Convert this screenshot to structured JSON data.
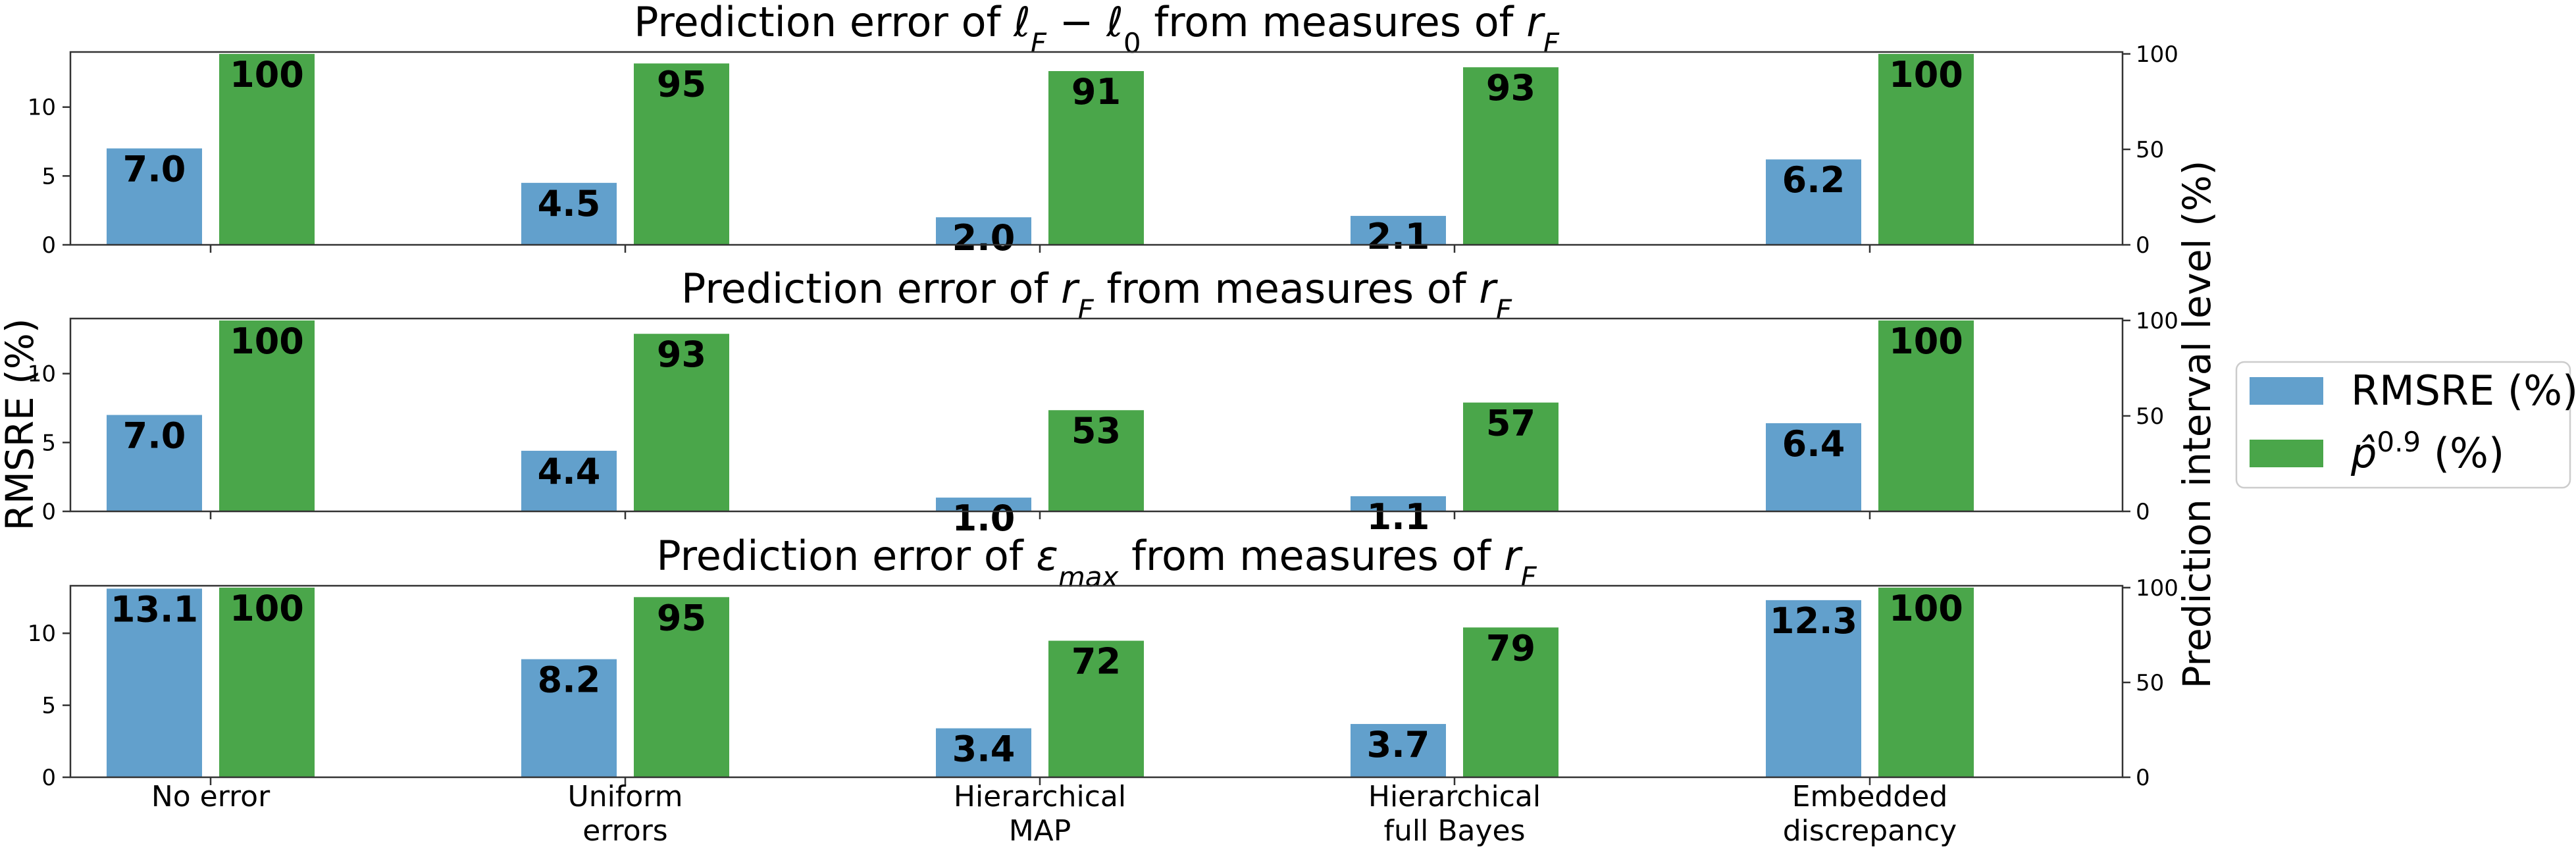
{
  "chart_data": {
    "type": "bar",
    "categories": [
      [
        "No error"
      ],
      [
        "Uniform",
        "errors"
      ],
      [
        "Hierarchical",
        "MAP"
      ],
      [
        "Hierarchical",
        "full Bayes"
      ],
      [
        "Embedded",
        "discrepancy"
      ]
    ],
    "ylabel": "RMSRE (%)",
    "y2label": "Prediction interval level (%)",
    "legend": {
      "placement": "right",
      "entries": [
        {
          "label": "RMSRE (%)",
          "color": "#62A0CC"
        },
        {
          "label": "p̂",
          "label_sup": "0.9",
          "label_suffix": " (%)",
          "color": "#4AA64A"
        }
      ]
    },
    "panels": [
      {
        "title_parts": [
          {
            "t": "Prediction error of "
          },
          {
            "t": "ℓ",
            "i": true
          },
          {
            "t": "F",
            "i": true,
            "sub": true
          },
          {
            "t": " − "
          },
          {
            "t": "ℓ",
            "i": true
          },
          {
            "t": "0",
            "sub": true
          },
          {
            "t": " from measures of "
          },
          {
            "t": "r",
            "i": true
          },
          {
            "t": "F",
            "i": true,
            "sub": true
          }
        ],
        "ylim": [
          0,
          14
        ],
        "y2lim": [
          0,
          101
        ],
        "yticks": [
          0,
          5,
          10
        ],
        "y2ticks": [
          0,
          50,
          100
        ],
        "series": [
          {
            "name": "RMSRE (%)",
            "axis": "left",
            "values": [
              7.0,
              4.5,
              2.0,
              2.1,
              6.2
            ],
            "labels": [
              "7.0",
              "4.5",
              "2.0",
              "2.1",
              "6.2"
            ]
          },
          {
            "name": "p̂0.9 (%)",
            "axis": "right",
            "values": [
              100,
              95,
              91,
              93,
              100
            ],
            "labels": [
              "100",
              "95",
              "91",
              "93",
              "100"
            ]
          }
        ]
      },
      {
        "title_parts": [
          {
            "t": "Prediction error of "
          },
          {
            "t": "r",
            "i": true
          },
          {
            "t": "F",
            "i": true,
            "sub": true
          },
          {
            "t": " from measures of "
          },
          {
            "t": "r",
            "i": true
          },
          {
            "t": "F",
            "i": true,
            "sub": true
          }
        ],
        "ylim": [
          0,
          14
        ],
        "y2lim": [
          0,
          101
        ],
        "yticks": [
          0,
          5,
          10
        ],
        "y2ticks": [
          0,
          50,
          100
        ],
        "series": [
          {
            "name": "RMSRE (%)",
            "axis": "left",
            "values": [
              7.0,
              4.4,
              1.0,
              1.1,
              6.4
            ],
            "labels": [
              "7.0",
              "4.4",
              "1.0",
              "1.1",
              "6.4"
            ]
          },
          {
            "name": "p̂0.9 (%)",
            "axis": "right",
            "values": [
              100,
              93,
              53,
              57,
              100
            ],
            "labels": [
              "100",
              "93",
              "53",
              "57",
              "100"
            ]
          }
        ]
      },
      {
        "title_parts": [
          {
            "t": "Prediction error of "
          },
          {
            "t": "ε",
            "i": true
          },
          {
            "t": "max",
            "i": true,
            "sub": true
          },
          {
            "t": " from measures of "
          },
          {
            "t": "r",
            "i": true
          },
          {
            "t": "F",
            "i": true,
            "sub": true
          }
        ],
        "ylim": [
          0,
          13.3
        ],
        "y2lim": [
          0,
          101
        ],
        "yticks": [
          0,
          5,
          10
        ],
        "y2ticks": [
          0,
          50,
          100
        ],
        "series": [
          {
            "name": "RMSRE (%)",
            "axis": "left",
            "values": [
              13.1,
              8.2,
              3.4,
              3.7,
              12.3
            ],
            "labels": [
              "13.1",
              "8.2",
              "3.4",
              "3.7",
              "12.3"
            ]
          },
          {
            "name": "p̂0.9 (%)",
            "axis": "right",
            "values": [
              100,
              95,
              72,
              79,
              100
            ],
            "labels": [
              "100",
              "95",
              "72",
              "79",
              "100"
            ]
          }
        ]
      }
    ]
  }
}
